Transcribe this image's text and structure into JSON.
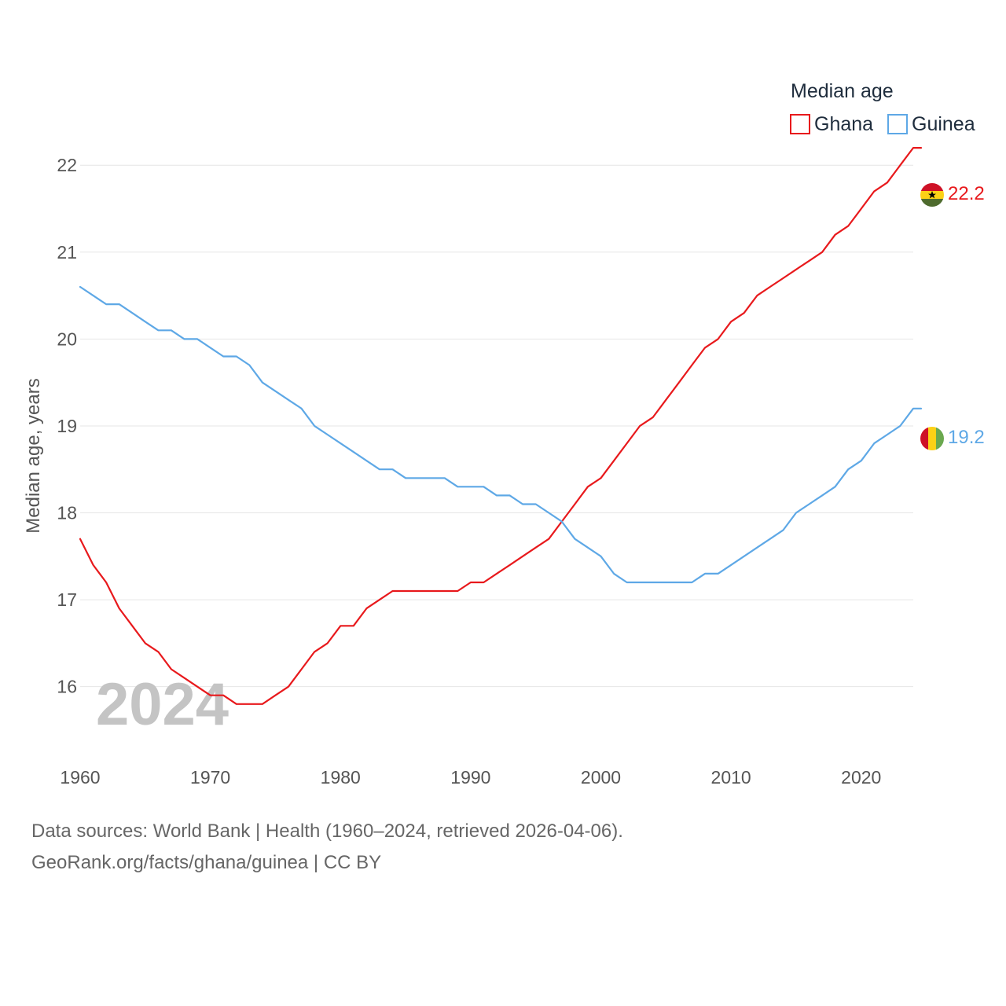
{
  "chart_data": {
    "type": "line",
    "title": "",
    "legend_title": "Median age",
    "xlabel": "",
    "ylabel": "Median age, years",
    "xlim": [
      1960,
      2024
    ],
    "ylim": [
      15.4,
      22.4
    ],
    "x_ticks": [
      1960,
      1970,
      1980,
      1990,
      2000,
      2010,
      2020
    ],
    "y_ticks": [
      16,
      17,
      18,
      19,
      20,
      21,
      22
    ],
    "grid": true,
    "legend_position": "top-right",
    "watermark_year": "2024",
    "x": [
      1960,
      1961,
      1962,
      1963,
      1964,
      1965,
      1966,
      1967,
      1968,
      1969,
      1970,
      1971,
      1972,
      1973,
      1974,
      1975,
      1976,
      1977,
      1978,
      1979,
      1980,
      1981,
      1982,
      1983,
      1984,
      1985,
      1986,
      1987,
      1988,
      1989,
      1990,
      1991,
      1992,
      1993,
      1994,
      1995,
      1996,
      1997,
      1998,
      1999,
      2000,
      2001,
      2002,
      2003,
      2004,
      2005,
      2006,
      2007,
      2008,
      2009,
      2010,
      2011,
      2012,
      2013,
      2014,
      2015,
      2016,
      2017,
      2018,
      2019,
      2020,
      2021,
      2022,
      2023,
      2024
    ],
    "series": [
      {
        "name": "Ghana",
        "color": "#e8191c",
        "end_label": "22.2",
        "values": [
          17.7,
          17.4,
          17.2,
          16.9,
          16.7,
          16.5,
          16.4,
          16.2,
          16.1,
          16.0,
          15.9,
          15.9,
          15.8,
          15.8,
          15.8,
          15.9,
          16.0,
          16.2,
          16.4,
          16.5,
          16.7,
          16.7,
          16.9,
          17.0,
          17.1,
          17.1,
          17.1,
          17.1,
          17.1,
          17.1,
          17.2,
          17.2,
          17.3,
          17.4,
          17.5,
          17.6,
          17.7,
          17.9,
          18.1,
          18.3,
          18.4,
          18.6,
          18.8,
          19.0,
          19.1,
          19.3,
          19.5,
          19.7,
          19.9,
          20.0,
          20.2,
          20.3,
          20.5,
          20.6,
          20.7,
          20.8,
          20.9,
          21.0,
          21.2,
          21.3,
          21.5,
          21.7,
          21.8,
          22.0,
          22.2
        ]
      },
      {
        "name": "Guinea",
        "color": "#5ea8e6",
        "end_label": "19.2",
        "values": [
          20.6,
          20.5,
          20.4,
          20.4,
          20.3,
          20.2,
          20.1,
          20.1,
          20.0,
          20.0,
          19.9,
          19.8,
          19.8,
          19.7,
          19.5,
          19.4,
          19.3,
          19.2,
          19.0,
          18.9,
          18.8,
          18.7,
          18.6,
          18.5,
          18.5,
          18.4,
          18.4,
          18.4,
          18.4,
          18.3,
          18.3,
          18.3,
          18.2,
          18.2,
          18.1,
          18.1,
          18.0,
          17.9,
          17.7,
          17.6,
          17.5,
          17.3,
          17.2,
          17.2,
          17.2,
          17.2,
          17.2,
          17.2,
          17.3,
          17.3,
          17.4,
          17.5,
          17.6,
          17.7,
          17.8,
          18.0,
          18.1,
          18.2,
          18.3,
          18.5,
          18.6,
          18.8,
          18.9,
          19.0,
          19.2
        ]
      }
    ]
  },
  "footer": {
    "line1": "Data sources: World Bank | Health (1960–2024, retrieved 2026-04-06).",
    "line2": "GeoRank.org/facts/ghana/guinea | CC BY"
  }
}
